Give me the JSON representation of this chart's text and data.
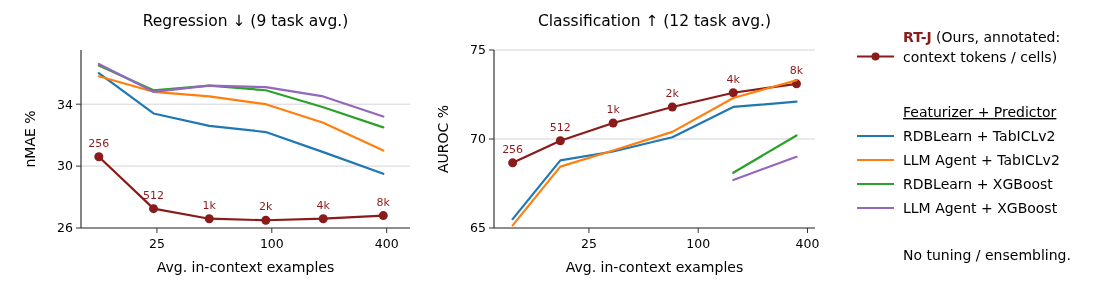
{
  "chart_data": [
    {
      "type": "line",
      "title": "Regression ↓ (9 task avg.)",
      "xlabel": "Avg. in-context examples",
      "ylabel": "nMAE %",
      "log": "x",
      "x": [
        12.4,
        24,
        47,
        93,
        186,
        384
      ],
      "xlim": [
        10,
        530
      ],
      "xticks": [
        25,
        100,
        400
      ],
      "ylim": [
        26,
        37.5
      ],
      "yticks": [
        26,
        30,
        34
      ],
      "grid": "y",
      "legend": false,
      "annotations": [
        {
          "text": "256",
          "x": 12.4,
          "y": 30.6
        },
        {
          "text": "512",
          "x": 24,
          "y": 27.25
        },
        {
          "text": "1k",
          "x": 47,
          "y": 26.6
        },
        {
          "text": "2k",
          "x": 93,
          "y": 26.5
        },
        {
          "text": "4k",
          "x": 186,
          "y": 26.6
        },
        {
          "text": "8k",
          "x": 384,
          "y": 26.8
        }
      ],
      "series": [
        {
          "color": "#1f77b4",
          "values": [
            36.0,
            33.4,
            32.6,
            32.2,
            30.9,
            29.5
          ]
        },
        {
          "color": "#ff7f0e",
          "values": [
            35.8,
            34.8,
            34.5,
            34.0,
            32.8,
            31.0
          ]
        },
        {
          "color": "#2ca02c",
          "values": [
            36.5,
            34.9,
            35.2,
            34.9,
            33.8,
            32.5
          ]
        },
        {
          "color": "#9467bd",
          "values": [
            36.6,
            34.8,
            35.2,
            35.1,
            34.5,
            33.2
          ]
        },
        {
          "color": "#8b1a1a",
          "marker": "circle",
          "values": [
            30.6,
            27.25,
            26.6,
            26.5,
            26.6,
            26.8
          ]
        }
      ]
    },
    {
      "type": "line",
      "title": "Classification ↑ (12 task avg.)",
      "xlabel": "Avg. in-context examples",
      "ylabel": "AUROC %",
      "log": "x",
      "x": [
        9.5,
        17.4,
        34,
        72,
        156,
        348
      ],
      "xlim": [
        7.5,
        440
      ],
      "xticks": [
        25,
        100,
        400
      ],
      "ylim": [
        65,
        75
      ],
      "yticks": [
        65,
        70,
        75
      ],
      "grid": "y",
      "legend": "right",
      "legend_title": "Featurizer + Predictor",
      "annotations": [
        {
          "text": "256",
          "x": 9.5,
          "y": 68.66
        },
        {
          "text": "512",
          "x": 17.4,
          "y": 69.9
        },
        {
          "text": "1k",
          "x": 34,
          "y": 70.9
        },
        {
          "text": "2k",
          "x": 72,
          "y": 71.8
        },
        {
          "text": "4k",
          "x": 156,
          "y": 72.6
        },
        {
          "text": "8k",
          "x": 348,
          "y": 73.1
        },
        "No tuning / ensembling."
      ],
      "series": [
        {
          "name": "RT-J (Ours, annotated: context tokens / cells)",
          "color": "#8b1a1a",
          "marker": "circle",
          "values": [
            68.66,
            69.9,
            70.9,
            71.8,
            72.6,
            73.1
          ]
        },
        {
          "name": "RDBLearn + TabICLv2",
          "color": "#1f77b4",
          "values": [
            65.5,
            68.8,
            69.3,
            70.1,
            71.8,
            72.1
          ]
        },
        {
          "name": "LLM Agent + TabICLv2",
          "color": "#ff7f0e",
          "values": [
            65.15,
            68.45,
            69.35,
            70.4,
            72.3,
            73.3
          ]
        },
        {
          "name": "RDBLearn + XGBoost",
          "color": "#2ca02c",
          "values": [
            null,
            null,
            null,
            null,
            68.1,
            70.2
          ]
        },
        {
          "name": "LLM Agent + XGBoost",
          "color": "#9467bd",
          "values": [
            null,
            null,
            null,
            null,
            67.7,
            69.0
          ]
        }
      ]
    }
  ]
}
